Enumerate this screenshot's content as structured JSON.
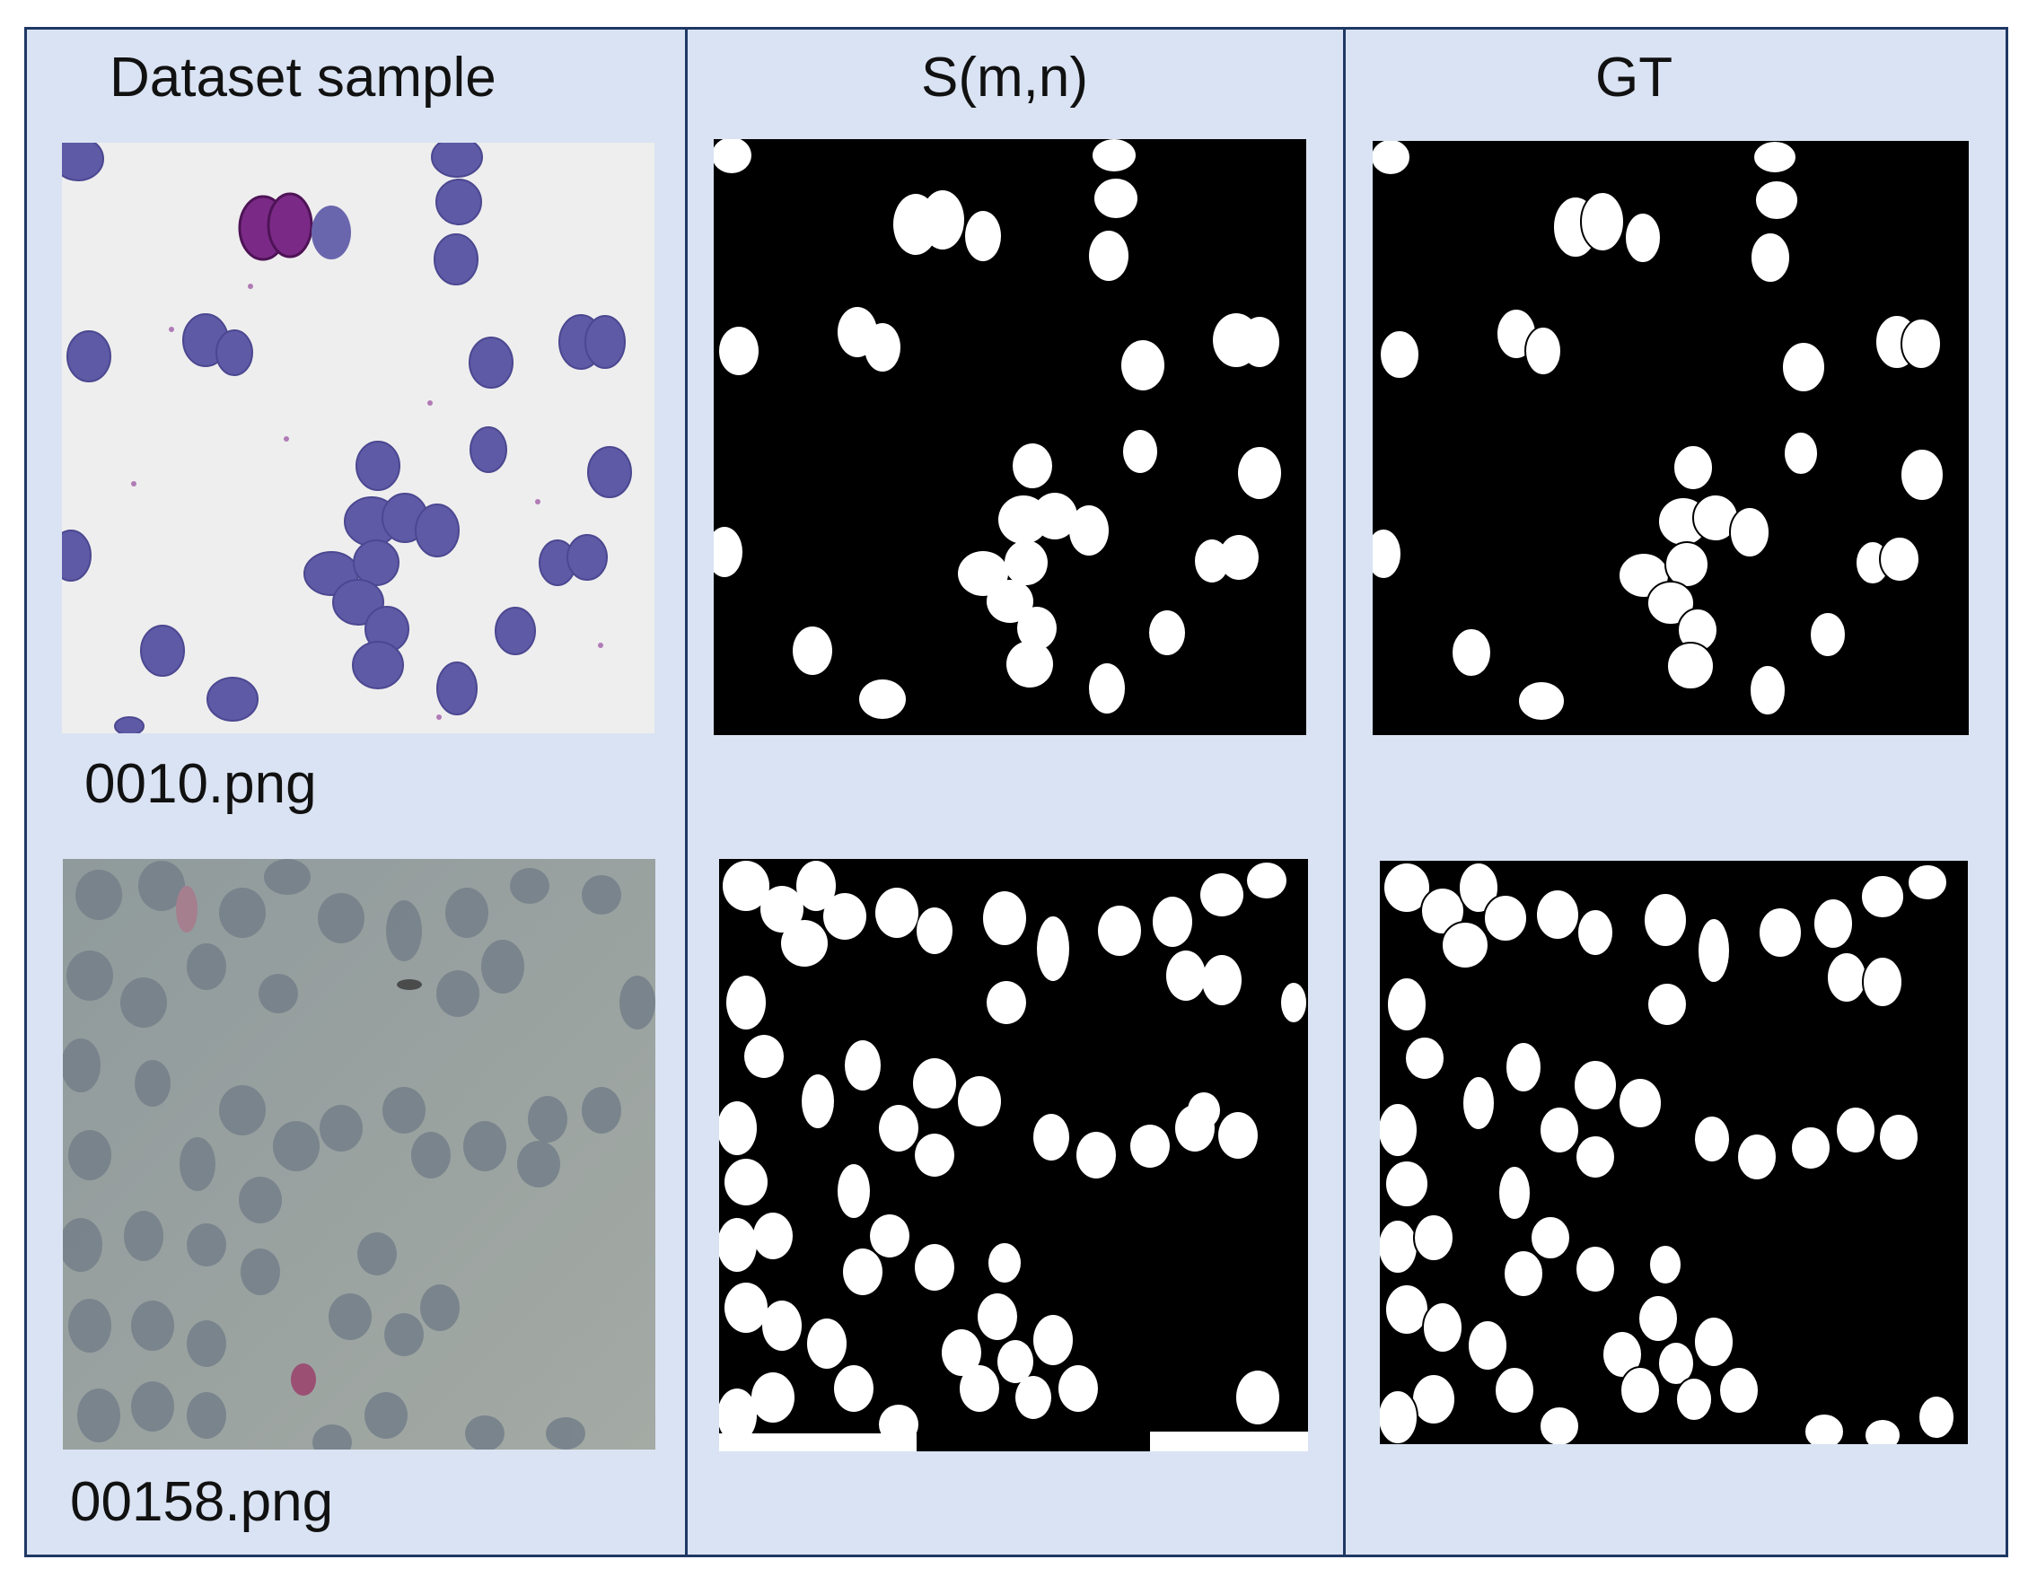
{
  "columns": [
    {
      "header": "Dataset sample"
    },
    {
      "header": "S(m,n)"
    },
    {
      "header": "GT"
    }
  ],
  "rows": [
    {
      "filename": "0010.png"
    },
    {
      "filename": "00158.png"
    }
  ],
  "colors": {
    "background": "#dae3f3",
    "border": "#1f3864",
    "mask_background": "#000000",
    "mask_foreground": "#ffffff",
    "stained_cell": "#5e5aa6",
    "parasite": "#7a2a86",
    "smear_background_1": "#eeeeee",
    "smear_background_2": "#8f9a9c"
  }
}
